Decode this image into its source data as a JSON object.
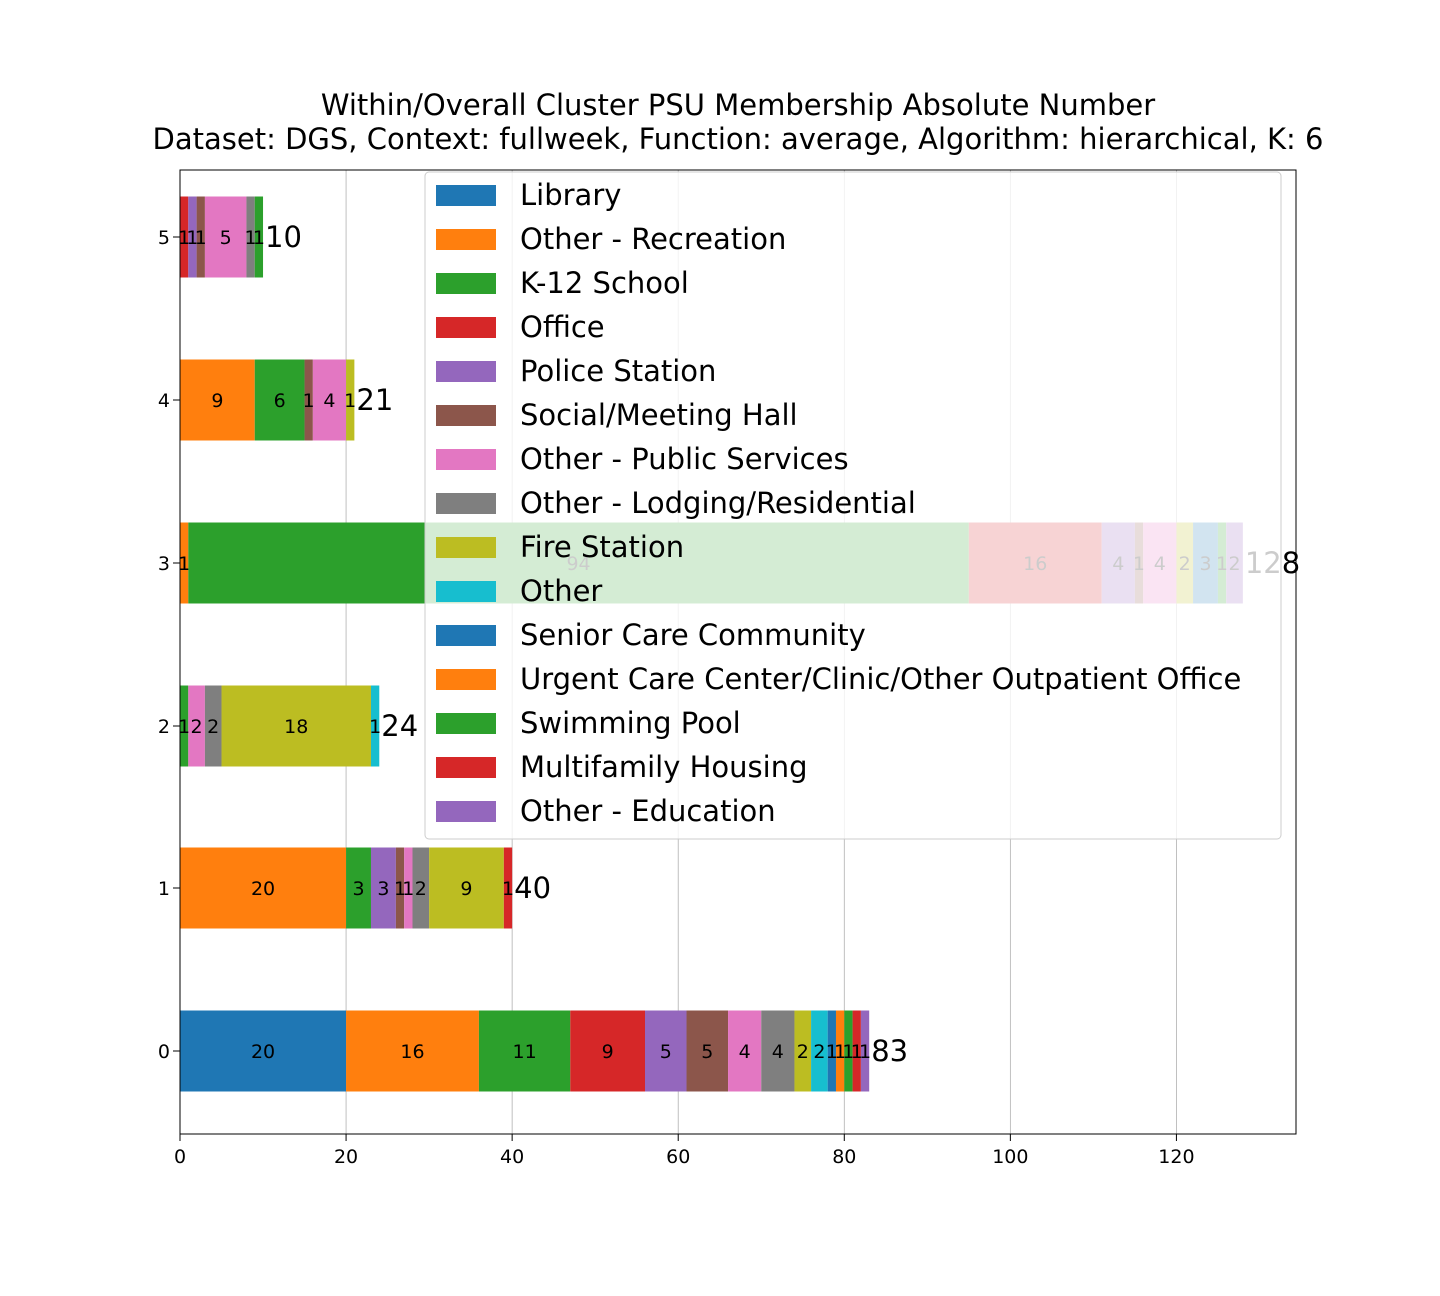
{
  "chart_data": {
    "type": "bar",
    "orientation": "horizontal",
    "stacked": true,
    "title": "Within/Overall Cluster PSU Membership Absolute Number",
    "subtitle": "Dataset: DGS, Context: fullweek, Function: average, Algorithm: hierarchical, K: 6",
    "xlabel": "",
    "ylabel": "",
    "xlim": [
      0,
      134.4
    ],
    "x_ticks": [
      0,
      20,
      40,
      60,
      80,
      100,
      120
    ],
    "grid": "vertical",
    "legend_position": "top-right",
    "categories": [
      "0",
      "1",
      "2",
      "3",
      "4",
      "5"
    ],
    "totals": [
      83,
      40,
      24,
      128,
      21,
      10
    ],
    "legend": [
      {
        "name": "Library",
        "color": "#1f77b4"
      },
      {
        "name": "Other - Recreation",
        "color": "#ff7f0e"
      },
      {
        "name": "K-12 School",
        "color": "#2ca02c"
      },
      {
        "name": "Office",
        "color": "#d62728"
      },
      {
        "name": "Police Station",
        "color": "#9467bd"
      },
      {
        "name": "Social/Meeting Hall",
        "color": "#8c564b"
      },
      {
        "name": "Other - Public Services",
        "color": "#e377c2"
      },
      {
        "name": "Other - Lodging/Residential",
        "color": "#7f7f7f"
      },
      {
        "name": "Fire Station",
        "color": "#bcbd22"
      },
      {
        "name": "Other",
        "color": "#17becf"
      },
      {
        "name": "Senior Care Community",
        "color": "#1f77b4"
      },
      {
        "name": "Urgent Care Center/Clinic/Other Outpatient Office",
        "color": "#ff7f0e"
      },
      {
        "name": "Swimming Pool",
        "color": "#2ca02c"
      },
      {
        "name": "Multifamily Housing",
        "color": "#d62728"
      },
      {
        "name": "Other - Education",
        "color": "#9467bd"
      }
    ],
    "bars": [
      {
        "category": "0",
        "segments": [
          {
            "value": 20,
            "color": "#1f77b4"
          },
          {
            "value": 16,
            "color": "#ff7f0e"
          },
          {
            "value": 11,
            "color": "#2ca02c"
          },
          {
            "value": 9,
            "color": "#d62728"
          },
          {
            "value": 5,
            "color": "#9467bd"
          },
          {
            "value": 5,
            "color": "#8c564b"
          },
          {
            "value": 4,
            "color": "#e377c2"
          },
          {
            "value": 4,
            "color": "#7f7f7f"
          },
          {
            "value": 2,
            "color": "#bcbd22"
          },
          {
            "value": 2,
            "color": "#17becf"
          },
          {
            "value": 1,
            "color": "#1f77b4"
          },
          {
            "value": 1,
            "color": "#ff7f0e"
          },
          {
            "value": 1,
            "color": "#2ca02c"
          },
          {
            "value": 1,
            "color": "#d62728"
          },
          {
            "value": 1,
            "color": "#9467bd"
          }
        ]
      },
      {
        "category": "1",
        "segments": [
          {
            "value": 20,
            "color": "#ff7f0e"
          },
          {
            "value": 3,
            "color": "#2ca02c"
          },
          {
            "value": 3,
            "color": "#9467bd"
          },
          {
            "value": 1,
            "color": "#8c564b"
          },
          {
            "value": 1,
            "color": "#e377c2"
          },
          {
            "value": 2,
            "color": "#7f7f7f"
          },
          {
            "value": 9,
            "color": "#bcbd22"
          },
          {
            "value": 1,
            "color": "#d62728"
          }
        ]
      },
      {
        "category": "2",
        "segments": [
          {
            "value": 1,
            "color": "#2ca02c"
          },
          {
            "value": 2,
            "color": "#e377c2"
          },
          {
            "value": 2,
            "color": "#7f7f7f"
          },
          {
            "value": 18,
            "color": "#bcbd22"
          },
          {
            "value": 1,
            "color": "#17becf"
          }
        ]
      },
      {
        "category": "3",
        "segments": [
          {
            "value": 1,
            "color": "#ff7f0e"
          },
          {
            "value": 94,
            "color": "#2ca02c"
          },
          {
            "value": 16,
            "color": "#d62728"
          },
          {
            "value": 4,
            "color": "#9467bd"
          },
          {
            "value": 1,
            "color": "#8c564b"
          },
          {
            "value": 4,
            "color": "#e377c2"
          },
          {
            "value": 2,
            "color": "#bcbd22"
          },
          {
            "value": 3,
            "color": "#1f77b4"
          },
          {
            "value": 1,
            "color": "#2ca02c"
          },
          {
            "value": 2,
            "color": "#9467bd"
          }
        ]
      },
      {
        "category": "4",
        "segments": [
          {
            "value": 9,
            "color": "#ff7f0e"
          },
          {
            "value": 6,
            "color": "#2ca02c"
          },
          {
            "value": 1,
            "color": "#8c564b"
          },
          {
            "value": 4,
            "color": "#e377c2"
          },
          {
            "value": 1,
            "color": "#bcbd22"
          }
        ]
      },
      {
        "category": "5",
        "segments": [
          {
            "value": 1,
            "color": "#d62728"
          },
          {
            "value": 1,
            "color": "#9467bd"
          },
          {
            "value": 1,
            "color": "#8c564b"
          },
          {
            "value": 5,
            "color": "#e377c2"
          },
          {
            "value": 1,
            "color": "#7f7f7f"
          },
          {
            "value": 1,
            "color": "#2ca02c"
          }
        ]
      }
    ]
  }
}
